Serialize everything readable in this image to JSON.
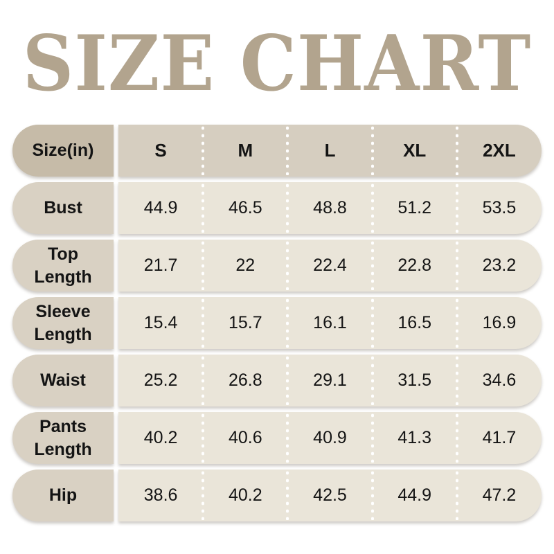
{
  "title": "SIZE CHART",
  "colors": {
    "title": "#b2a48e",
    "header_label_bg": "#c6bba8",
    "header_data_bg": "#d6cec0",
    "row_label_bg": "#d9d1c3",
    "row_data_bg": "#eae5d9",
    "text": "#141414",
    "page_bg": "#ffffff"
  },
  "table": {
    "header": {
      "label": "Size(in)",
      "columns": [
        "S",
        "M",
        "L",
        "XL",
        "2XL"
      ]
    },
    "rows": [
      {
        "label": "Bust",
        "values": [
          "44.9",
          "46.5",
          "48.8",
          "51.2",
          "53.5"
        ]
      },
      {
        "label": "Top Length",
        "values": [
          "21.7",
          "22",
          "22.4",
          "22.8",
          "23.2"
        ]
      },
      {
        "label": "Sleeve Length",
        "values": [
          "15.4",
          "15.7",
          "16.1",
          "16.5",
          "16.9"
        ]
      },
      {
        "label": "Waist",
        "values": [
          "25.2",
          "26.8",
          "29.1",
          "31.5",
          "34.6"
        ]
      },
      {
        "label": "Pants Length",
        "values": [
          "40.2",
          "40.6",
          "40.9",
          "41.3",
          "41.7"
        ]
      },
      {
        "label": "Hip",
        "values": [
          "38.6",
          "40.2",
          "42.5",
          "44.9",
          "47.2"
        ]
      }
    ]
  },
  "chart_data": {
    "type": "table",
    "title": "SIZE CHART",
    "unit": "in",
    "columns": [
      "Size(in)",
      "S",
      "M",
      "L",
      "XL",
      "2XL"
    ],
    "rows": [
      [
        "Bust",
        44.9,
        46.5,
        48.8,
        51.2,
        53.5
      ],
      [
        "Top Length",
        21.7,
        22,
        22.4,
        22.8,
        23.2
      ],
      [
        "Sleeve Length",
        15.4,
        15.7,
        16.1,
        16.5,
        16.9
      ],
      [
        "Waist",
        25.2,
        26.8,
        29.1,
        31.5,
        34.6
      ],
      [
        "Pants Length",
        40.2,
        40.6,
        40.9,
        41.3,
        41.7
      ],
      [
        "Hip",
        38.6,
        40.2,
        42.5,
        44.9,
        47.2
      ]
    ]
  }
}
